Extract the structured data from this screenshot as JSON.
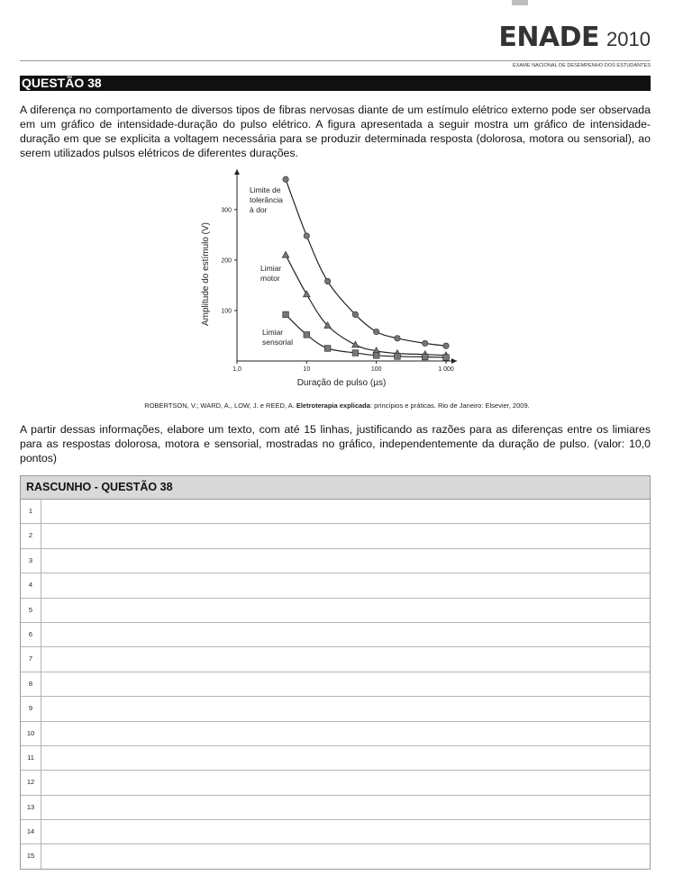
{
  "header": {
    "brand": "ENADE",
    "year": "2010",
    "subtitle": "EXAME NACIONAL DE DESEMPENHO DOS ESTUDANTES"
  },
  "question": {
    "title": "QUESTÃO 38",
    "intro": "A diferença no comportamento de diversos tipos de fibras nervosas diante de um estímulo elétrico externo pode ser observada em um gráfico de intensidade-duração do pulso elétrico. A figura apresentada a seguir mostra um gráfico de intensidade-duração em que se explicita a voltagem necessária para se produzir determinada resposta (dolorosa, motora ou sensorial), ao serem utilizados pulsos elétricos de diferentes durações.",
    "citation_pre": "ROBERTSON, V.; WARD, A., LOW, J. e REED, A. ",
    "citation_bold": "Eletroterapia explicada",
    "citation_post": ": princípios e práticas. Rio de Janeiro: Elsevier, 2009.",
    "prompt": "A partir dessas informações, elabore um texto, com até 15 linhas, justificando as razões para as diferenças entre os limiares para as respostas dolorosa, motora e sensorial, mostradas no gráfico, independentemente da duração de pulso. (valor: 10,0 pontos)"
  },
  "chart_data": {
    "type": "scatter",
    "xlabel": "Duração de pulso (µs)",
    "ylabel": "Amplitude do estímulo (V)",
    "x_scale": "log",
    "xlim": [
      1,
      1000
    ],
    "ylim": [
      0,
      380
    ],
    "x_ticks": [
      "1,0",
      "10",
      "100",
      "1 000"
    ],
    "y_ticks": [
      "100",
      "200",
      "300"
    ],
    "series": [
      {
        "name": "Limite de tolerância à dor",
        "label_lines": [
          "Limite de",
          "tolerância",
          "à dor"
        ],
        "marker": "circle",
        "x": [
          5,
          10,
          20,
          50,
          100,
          200,
          500,
          1000
        ],
        "y": [
          360,
          248,
          158,
          92,
          58,
          45,
          35,
          30
        ]
      },
      {
        "name": "Limiar motor",
        "label_lines": [
          "Limiar",
          "motor"
        ],
        "marker": "triangle",
        "x": [
          5,
          10,
          20,
          50,
          100,
          200,
          500,
          1000
        ],
        "y": [
          210,
          132,
          70,
          32,
          20,
          15,
          13,
          11
        ]
      },
      {
        "name": "Limiar sensorial",
        "label_lines": [
          "Limiar",
          "sensorial"
        ],
        "marker": "square",
        "x": [
          5,
          10,
          20,
          50,
          100,
          200,
          500,
          1000
        ],
        "y": [
          92,
          52,
          25,
          16,
          11,
          9,
          8,
          7
        ]
      }
    ]
  },
  "rascunho": {
    "title": "RASCUNHO - QUESTÃO 38",
    "lines": [
      "1",
      "2",
      "3",
      "4",
      "5",
      "6",
      "7",
      "8",
      "9",
      "10",
      "11",
      "12",
      "13",
      "14",
      "15"
    ]
  }
}
